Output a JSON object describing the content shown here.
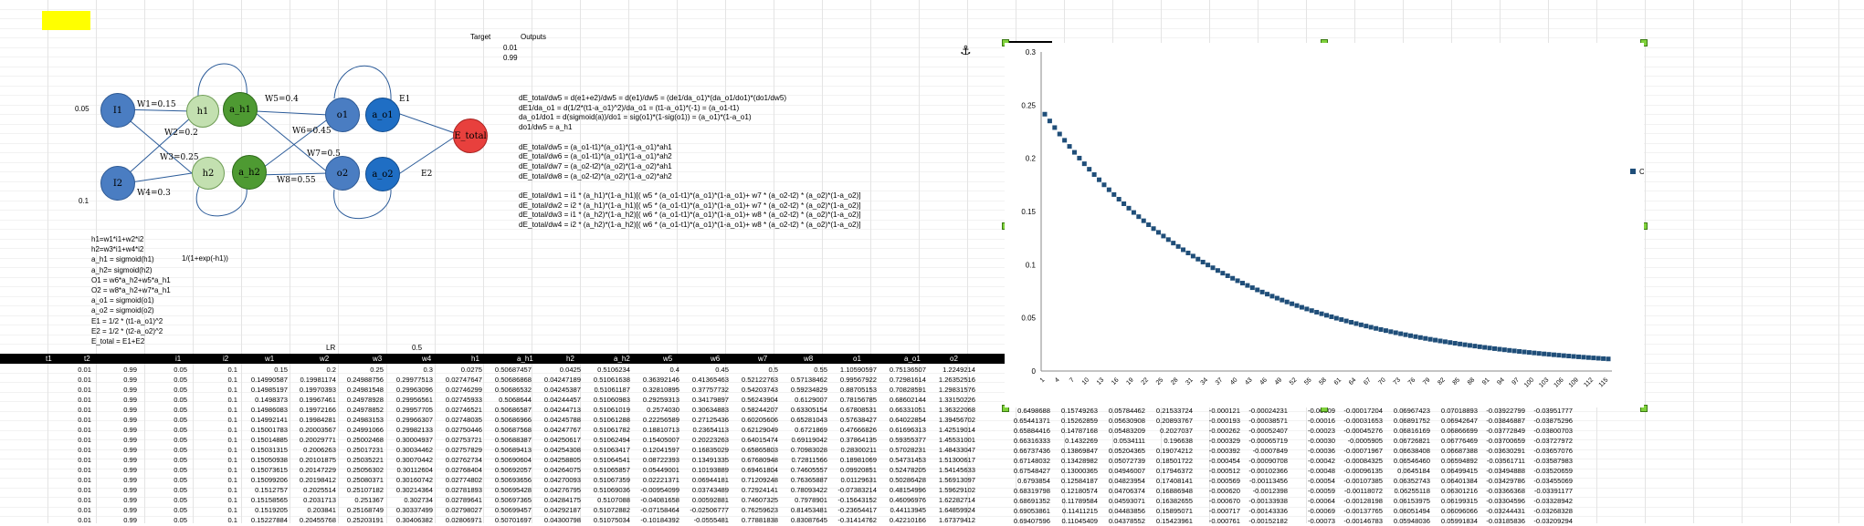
{
  "colors": {
    "highlight": "#ffff00",
    "header": "#000000",
    "marker": "#1f4e79"
  },
  "targets": {
    "label_target": "Target",
    "label_outputs": "Outputs",
    "t1": "0.01",
    "t2": "0.99"
  },
  "inputs": {
    "i1_value": "0.05",
    "i2_value": "0.1"
  },
  "nodes": {
    "i1": "I1",
    "i2": "I2",
    "h1": "h1",
    "ah1": "a_h1",
    "h2": "h2",
    "ah2": "a_h2",
    "o1": "o1",
    "ao1": "a_o1",
    "o2": "o2",
    "ao2": "a_o2",
    "etotal": "E_total"
  },
  "weights": {
    "w1": "W1=0.15",
    "w2": "W2=0.2",
    "w3": "W3=0.25",
    "w4": "W4=0.3",
    "w5": "W5=0.4",
    "w6": "W6=0.45",
    "w7": "W7=0.5",
    "w8": "W8=0.55",
    "e1": "E1",
    "e2": "E2"
  },
  "formulas": [
    "h1=w1*i1+w2*i2",
    "h2=w3*i1+w4*i2",
    "a_h1 = sigmoid(h1)",
    "a_h2= sigmoid(h2)",
    "O1 = w6*a_h2+w5*a_h1",
    "O2 = w8*a_h2+w7*a_h1",
    "a_o1 = sigmoid(o1)",
    "a_o2 = sigmoid(o2)",
    "E1 = 1/2 * (t1-a_o1)^2",
    "E2 = 1/2 * (t2-a_o2)^2",
    "E_total = E1+E2"
  ],
  "sigmoid_formula": "1/(1+exp(-h1))",
  "derivations": [
    "dE_total/dw5 = d(e1+e2)/dw5 = d(e1)/dw5 = (de1/da_o1)*(da_o1/do1)*(do1/dw5)",
    "dE1/da_o1 = d(1/2*(t1-a_o1)^2)/da_o1 = (t1-a_o1)*(-1) = (a_o1-t1)",
    "da_o1/do1 = d(sigmoid(a))/do1 = sig(o1)*(1-sig(o1)) = (a_o1)*(1-a_o1)",
    "do1/dw5 = a_h1",
    "",
    "dE_total/dw5 = (a_o1-t1)*(a_o1)*(1-a_o1)*ah1",
    "dE_total/dw6 = (a_o1-t1)*(a_o1)*(1-a_o1)*ah2",
    "dE_total/dw7 = (a_o2-t2)*(a_o2)*(1-a_o2)*ah1",
    "dE_total/dw8 = (a_o2-t2)*(a_o2)*(1-a_o2)*ah2",
    "",
    "dE_total/dw1 = i1 * (a_h1)*(1-a_h1)[( w5 * (a_o1-t1)*(a_o1)*(1-a_o1)+ w7 * (a_o2-t2) * (a_o2)*(1-a_o2)]",
    "dE_total/dw2 = i2 * (a_h1)*(1-a_h1)[( w5 * (a_o1-t1)*(a_o1)*(1-a_o1)+ w7 * (a_o2-t2) * (a_o2)*(1-a_o2)]",
    "dE_total/dw3 = i1 * (a_h2)*(1-a_h2)[( w6 * (a_o1-t1)*(a_o1)*(1-a_o1)+ w8 * (a_o2-t2) * (a_o2)*(1-a_o2)]",
    "dE_total/dw4 = i2 * (a_h2)*(1-a_h2)[( w6 * (a_o1-t1)*(a_o1)*(1-a_o1)+ w8 * (a_o2-t2) * (a_o2)*(1-a_o2)]"
  ],
  "lr": {
    "label": "LR",
    "value": "0.5"
  },
  "table": {
    "headers": [
      "t1",
      "t2",
      "i1",
      "i2",
      "w1",
      "w2",
      "w3",
      "w4",
      "h1",
      "a_h1",
      "h2",
      "a_h2",
      "w5",
      "w6",
      "w7",
      "w8",
      "o1",
      "a_o1",
      "o2"
    ],
    "rows": [
      [
        "0.01",
        "0.99",
        "0.05",
        "0.1",
        "0.15",
        "0.2",
        "0.25",
        "0.3",
        "0.0275",
        "0.50687457",
        "0.0425",
        "0.5106234",
        "0.4",
        "0.45",
        "0.5",
        "0.55",
        "1.10590597",
        "0.75136507",
        "1.2249214"
      ],
      [
        "0.01",
        "0.99",
        "0.05",
        "0.1",
        "0.14990587",
        "0.19981174",
        "0.24988756",
        "0.29977513",
        "0.02747647",
        "0.50686868",
        "0.04247189",
        "0.51061638",
        "0.36392146",
        "0.41365463",
        "0.52122763",
        "0.57138462",
        "0.99567922",
        "0.72981614",
        "1.26352516"
      ],
      [
        "0.01",
        "0.99",
        "0.05",
        "0.1",
        "0.14985197",
        "0.19970393",
        "0.24981548",
        "0.29963096",
        "0.02746299",
        "0.50686532",
        "0.04245387",
        "0.51061187",
        "0.32810895",
        "0.37757732",
        "0.54203743",
        "0.59234829",
        "0.88705153",
        "0.70828591",
        "1.29831576"
      ],
      [
        "0.01",
        "0.99",
        "0.05",
        "0.1",
        "0.1498373",
        "0.19967461",
        "0.24978928",
        "0.29956561",
        "0.02745933",
        "0.5068644",
        "0.04244457",
        "0.51060983",
        "0.29259313",
        "0.34179897",
        "0.56243904",
        "0.6129007",
        "0.78156785",
        "0.68602144",
        "1.33150226"
      ],
      [
        "0.01",
        "0.99",
        "0.05",
        "0.1",
        "0.14986083",
        "0.19972166",
        "0.24978852",
        "0.29957705",
        "0.02746521",
        "0.50686587",
        "0.04244713",
        "0.51061019",
        "0.2574030",
        "0.30634883",
        "0.58244207",
        "0.63305154",
        "0.67808531",
        "0.66331051",
        "1.36322068"
      ],
      [
        "0.01",
        "0.99",
        "0.05",
        "0.1",
        "0.14992141",
        "0.19984281",
        "0.24983153",
        "0.29966307",
        "0.02748035",
        "0.50686966",
        "0.04245788",
        "0.51061288",
        "0.22256589",
        "0.27125436",
        "0.60205606",
        "0.65281043",
        "0.57638427",
        "0.64022854",
        "1.39456702"
      ],
      [
        "0.01",
        "0.99",
        "0.05",
        "0.1",
        "0.15001783",
        "0.20003567",
        "0.24991066",
        "0.29982133",
        "0.02750446",
        "0.50687568",
        "0.04247767",
        "0.51061782",
        "0.18810713",
        "0.23654113",
        "0.62129049",
        "0.6721869",
        "0.47666826",
        "0.61696313",
        "1.42519014"
      ],
      [
        "0.01",
        "0.99",
        "0.05",
        "0.1",
        "0.15014885",
        "0.20029771",
        "0.25002468",
        "0.30004937",
        "0.02753721",
        "0.50688387",
        "0.04250617",
        "0.51062494",
        "0.15405007",
        "0.20223263",
        "0.64015474",
        "0.69119042",
        "0.37864135",
        "0.59355377",
        "1.45531001"
      ],
      [
        "0.01",
        "0.99",
        "0.05",
        "0.1",
        "0.15031315",
        "0.2006263",
        "0.25017231",
        "0.30034462",
        "0.02757829",
        "0.50689413",
        "0.04254308",
        "0.51063417",
        "0.12041597",
        "0.16835029",
        "0.65865803",
        "0.70983028",
        "0.28300211",
        "0.57028231",
        "1.48433047"
      ],
      [
        "0.01",
        "0.99",
        "0.05",
        "0.1",
        "0.15050938",
        "0.20101875",
        "0.25035221",
        "0.30070442",
        "0.02762734",
        "0.50690604",
        "0.04258805",
        "0.51064541",
        "0.08722393",
        "0.13491335",
        "0.67680948",
        "0.72811566",
        "0.18981069",
        "0.54731453",
        "1.51300617"
      ],
      [
        "0.01",
        "0.99",
        "0.05",
        "0.1",
        "0.15073615",
        "0.20147229",
        "0.25056302",
        "0.30112604",
        "0.02768404",
        "0.50692057",
        "0.04264075",
        "0.51065857",
        "0.05449001",
        "0.10193889",
        "0.69461804",
        "0.74605557",
        "0.09920851",
        "0.52478205",
        "1.54145633"
      ],
      [
        "0.01",
        "0.99",
        "0.05",
        "0.1",
        "0.15099206",
        "0.20198412",
        "0.25080371",
        "0.30160742",
        "0.02774802",
        "0.50693656",
        "0.04270093",
        "0.51067359",
        "0.02221371",
        "0.06944181",
        "0.71209248",
        "0.76365887",
        "0.01129631",
        "0.50286428",
        "1.56913097"
      ],
      [
        "0.01",
        "0.99",
        "0.05",
        "0.1",
        "0.1512757",
        "0.2025514",
        "0.25107182",
        "0.30214364",
        "0.02781893",
        "0.50695428",
        "0.04276795",
        "0.51069036",
        "-0.00954099",
        "0.03743489",
        "0.72924141",
        "0.78093422",
        "-0.07383214",
        "0.48154996",
        "1.59629102"
      ],
      [
        "0.01",
        "0.99",
        "0.05",
        "0.1",
        "0.15158565",
        "0.2031713",
        "0.251367",
        "0.302734",
        "0.02789641",
        "0.50697365",
        "0.04284175",
        "0.5107088",
        "-0.04081658",
        "0.00592881",
        "0.74607325",
        "0.7978901",
        "-0.15643152",
        "0.46096976",
        "1.62282714"
      ],
      [
        "0.01",
        "0.99",
        "0.05",
        "0.1",
        "0.1519205",
        "0.203841",
        "0.25168749",
        "0.30337499",
        "0.02798027",
        "0.50699457",
        "0.04292187",
        "0.51072882",
        "-0.07158464",
        "-0.02506777",
        "0.76259623",
        "0.81453481",
        "-0.23654417",
        "0.44113945",
        "1.64859924"
      ],
      [
        "0.01",
        "0.99",
        "0.05",
        "0.1",
        "0.15227884",
        "0.20455768",
        "0.25203191",
        "0.30406382",
        "0.02806971",
        "0.50701697",
        "0.04300798",
        "0.51075034",
        "-0.10184392",
        "-0.0555481",
        "0.77881838",
        "0.83087645",
        "-0.31414762",
        "0.42210166",
        "1.67379412"
      ]
    ]
  },
  "right_columns": {
    "rows": [
      [
        "0.6498688",
        "0.15749263",
        "0.05784462",
        "0.21533724",
        "-0.000121",
        "-0.00024231",
        "-0.00009",
        "-0.00017204",
        "0.06967423",
        "0.07018893",
        "-0.03922799",
        "-0.03951777"
      ],
      [
        "0.65441371",
        "0.15262859",
        "0.05630908",
        "0.20893767",
        "-0.000193",
        "-0.00038571",
        "-0.00016",
        "-0.00031653",
        "0.06891752",
        "0.06942647",
        "-0.03846887",
        "-0.03875296"
      ],
      [
        "0.65884416",
        "0.14787168",
        "0.05483209",
        "0.2027037",
        "-0.000262",
        "-0.00052407",
        "-0.00023",
        "-0.00045276",
        "0.06816169",
        "0.06866699",
        "-0.03772849",
        "-0.03800703"
      ],
      [
        "0.66316333",
        "0.1432269",
        "0.0534111",
        "0.196638",
        "-0.000329",
        "-0.00065719",
        "-0.00030",
        "-0.0005905",
        "0.06726821",
        "0.06776469",
        "-0.03700659",
        "-0.03727972"
      ],
      [
        "0.66737436",
        "0.13869847",
        "0.05204365",
        "0.19074212",
        "-0.000392",
        "-0.0007849",
        "-0.00036",
        "-0.00071967",
        "0.06638408",
        "0.06687388",
        "-0.03630291",
        "-0.03657076"
      ],
      [
        "0.67148032",
        "0.13428982",
        "0.05072739",
        "0.18501722",
        "-0.000454",
        "-0.00090708",
        "-0.00042",
        "-0.00084325",
        "0.06546460",
        "0.06594892",
        "-0.03561711",
        "-0.03587983"
      ],
      [
        "0.67548427",
        "0.13000365",
        "0.04946007",
        "0.17946372",
        "-0.000512",
        "-0.00102366",
        "-0.00048",
        "-0.00096135",
        "0.0645184",
        "0.06499415",
        "-0.03494888",
        "-0.03520659"
      ],
      [
        "0.6793854",
        "0.12584187",
        "0.04823954",
        "0.17408141",
        "-0.000569",
        "-0.00113456",
        "-0.00054",
        "-0.00107385",
        "0.06352743",
        "0.06401384",
        "-0.03429786",
        "-0.03455069"
      ],
      [
        "0.68319798",
        "0.12180574",
        "0.04706374",
        "0.16886948",
        "-0.000620",
        "-0.0012398",
        "-0.00059",
        "-0.00118072",
        "0.06255118",
        "0.06301216",
        "-0.03366368",
        "-0.03391177"
      ],
      [
        "0.68691352",
        "0.11789584",
        "0.04593071",
        "0.16382655",
        "-0.000670",
        "-0.00133938",
        "-0.00064",
        "-0.00128198",
        "0.06153975",
        "0.06199315",
        "-0.03304596",
        "-0.03328942"
      ],
      [
        "0.69053861",
        "0.11411215",
        "0.04483856",
        "0.15895071",
        "-0.000717",
        "-0.00143336",
        "-0.00069",
        "-0.00137765",
        "0.06051494",
        "0.06096066",
        "-0.03244431",
        "-0.03268328"
      ],
      [
        "0.69407596",
        "0.11045409",
        "0.04378552",
        "0.15423961",
        "-0.000761",
        "-0.00152182",
        "-0.00073",
        "-0.00146783",
        "0.05948036",
        "0.05991834",
        "-0.03185836",
        "-0.03209294"
      ]
    ]
  },
  "chart_data": {
    "type": "scatter",
    "title": "",
    "xlabel": "",
    "ylabel": "",
    "series": [
      {
        "name": "Column Y"
      }
    ],
    "ylim": [
      0,
      0.3
    ],
    "yticks": [
      "0",
      "0.05",
      "0.1",
      "0.15",
      "0.2",
      "0.25",
      "0.3"
    ],
    "xtick_labels": [
      "1",
      "4",
      "7",
      "10",
      "13",
      "16",
      "19",
      "22",
      "25",
      "28",
      "31",
      "34",
      "37",
      "40",
      "43",
      "46",
      "49",
      "52",
      "55",
      "58",
      "61",
      "64",
      "67",
      "70",
      "73",
      "76",
      "79",
      "82",
      "85",
      "88",
      "91",
      "94",
      "97",
      "100",
      "103",
      "106",
      "109",
      "112",
      "115"
    ],
    "x_start": 1,
    "x_end": 115,
    "y_start": 0.2415,
    "y_end": 0.0245,
    "decay_k": 0.0268,
    "y_floor": 0.0
  }
}
